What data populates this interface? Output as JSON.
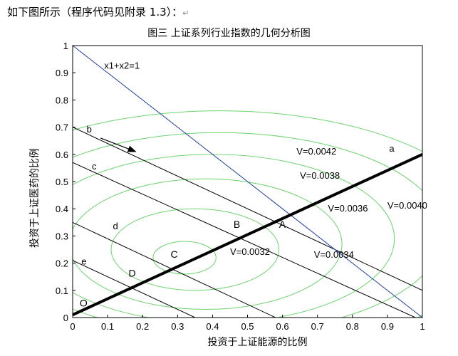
{
  "document": {
    "intro_text": "如下图所示（程序代码见附录 1.3）：",
    "intro_mark": "↵"
  },
  "chart_data": {
    "type": "line",
    "title": "图三 上证系列行业指数的几何分析图",
    "xlabel": "投资于上证能源的比例",
    "ylabel": "投资于上证医药的比例",
    "xlim": [
      0,
      1
    ],
    "ylim": [
      0,
      1
    ],
    "xticks": [
      "0",
      "0.1",
      "0.2",
      "0.3",
      "0.4",
      "0.5",
      "0.6",
      "0.7",
      "0.8",
      "0.9",
      "1"
    ],
    "yticks": [
      "0",
      "0.1",
      "0.2",
      "0.3",
      "0.4",
      "0.5",
      "0.6",
      "0.7",
      "0.8",
      "0.9",
      "1"
    ],
    "budget_line": {
      "label": "x1+x2=1",
      "points": [
        [
          0,
          1
        ],
        [
          1,
          0
        ]
      ],
      "color": "#1f3fa0"
    },
    "efficient_line": {
      "label": "a",
      "points": [
        [
          0,
          0.01
        ],
        [
          1,
          0.6
        ]
      ],
      "color": "#000000"
    },
    "iso_lines": [
      {
        "label": "b",
        "points": [
          [
            0,
            0.7
          ],
          [
            1,
            0.1
          ]
        ]
      },
      {
        "label": "c",
        "points": [
          [
            0,
            0.57
          ],
          [
            0.98,
            0
          ]
        ]
      },
      {
        "label": "d",
        "points": [
          [
            0,
            0.35
          ],
          [
            0.58,
            0
          ]
        ]
      },
      {
        "label": "e",
        "points": [
          [
            0,
            0.21
          ],
          [
            0.35,
            0
          ]
        ]
      }
    ],
    "points": [
      {
        "label": "O",
        "x": 0.02,
        "y": 0.04
      },
      {
        "label": "D",
        "x": 0.16,
        "y": 0.15
      },
      {
        "label": "C",
        "x": 0.28,
        "y": 0.22
      },
      {
        "label": "B",
        "x": 0.46,
        "y": 0.33
      },
      {
        "label": "A",
        "x": 0.59,
        "y": 0.33
      }
    ],
    "contour_labels": [
      {
        "label": "V=0.0042",
        "x": 0.64,
        "y": 0.6
      },
      {
        "label": "V=0.0038",
        "x": 0.65,
        "y": 0.51
      },
      {
        "label": "V=0.0036",
        "x": 0.73,
        "y": 0.39
      },
      {
        "label": "V=0.0040",
        "x": 0.9,
        "y": 0.4
      },
      {
        "label": "V=0.0032",
        "x": 0.45,
        "y": 0.23
      },
      {
        "label": "V=0.0034",
        "x": 0.69,
        "y": 0.22
      }
    ],
    "contours": [
      {
        "cx": 0.32,
        "cy": 0.22,
        "rx": 0.09,
        "ry": 0.06
      },
      {
        "cx": 0.35,
        "cy": 0.25,
        "rx": 0.24,
        "ry": 0.15
      },
      {
        "cx": 0.38,
        "cy": 0.27,
        "rx": 0.39,
        "ry": 0.24
      },
      {
        "cx": 0.4,
        "cy": 0.29,
        "rx": 0.52,
        "ry": 0.31
      },
      {
        "cx": 0.42,
        "cy": 0.31,
        "rx": 0.64,
        "ry": 0.37
      },
      {
        "cx": 0.42,
        "cy": 0.31,
        "rx": 0.78,
        "ry": 0.45
      }
    ],
    "contour_color": "#6cd36c",
    "arrow": {
      "from": [
        0.08,
        0.66
      ],
      "to": [
        0.18,
        0.61
      ]
    }
  }
}
